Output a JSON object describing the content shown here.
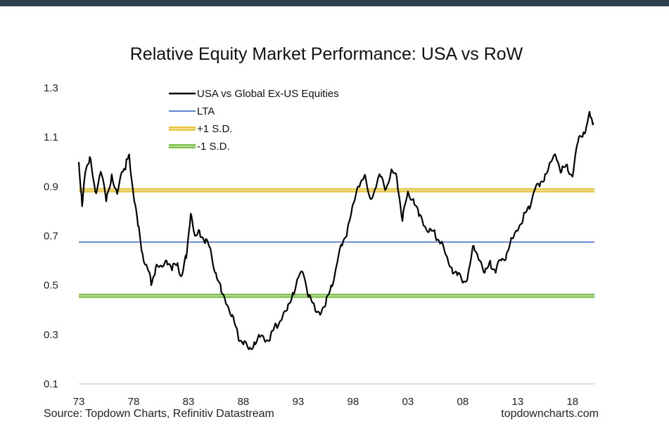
{
  "chart_data": {
    "type": "line",
    "title": "Relative Equity Market Performance: USA vs RoW",
    "xlabel": "",
    "ylabel": "",
    "xlim": [
      1973,
      2020
    ],
    "ylim": [
      0.1,
      1.3
    ],
    "x_ticks": [
      "73",
      "78",
      "83",
      "88",
      "93",
      "98",
      "03",
      "08",
      "13",
      "18"
    ],
    "y_ticks": [
      "1.3",
      "1.1",
      "0.9",
      "0.7",
      "0.5",
      "0.3",
      "0.1"
    ],
    "grid": false,
    "legend_position": "top-left",
    "series": [
      {
        "name": "USA vs Global Ex-US Equities",
        "color": "#000000",
        "x": [
          1973.0,
          1973.3,
          1973.6,
          1974.0,
          1974.5,
          1975.0,
          1975.5,
          1976.0,
          1976.5,
          1977.0,
          1977.3,
          1977.6,
          1978.0,
          1978.4,
          1978.8,
          1979.2,
          1979.6,
          1980.0,
          1980.5,
          1981.0,
          1981.5,
          1982.0,
          1982.4,
          1982.8,
          1983.2,
          1983.6,
          1984.0,
          1984.5,
          1985.0,
          1985.5,
          1986.0,
          1986.5,
          1987.0,
          1987.5,
          1988.0,
          1988.5,
          1989.0,
          1989.5,
          1990.0,
          1990.5,
          1991.0,
          1991.5,
          1992.0,
          1992.5,
          1993.0,
          1993.5,
          1994.0,
          1994.5,
          1995.0,
          1995.5,
          1996.0,
          1996.5,
          1997.0,
          1997.5,
          1998.0,
          1998.5,
          1999.0,
          1999.5,
          2000.0,
          2000.5,
          2001.0,
          2001.5,
          2002.0,
          2002.5,
          2003.0,
          2003.5,
          2004.0,
          2004.5,
          2005.0,
          2005.5,
          2006.0,
          2006.5,
          2007.0,
          2007.5,
          2008.0,
          2008.5,
          2009.0,
          2009.5,
          2010.0,
          2010.5,
          2011.0,
          2011.5,
          2012.0,
          2012.5,
          2013.0,
          2013.5,
          2014.0,
          2014.5,
          2015.0,
          2015.5,
          2016.0,
          2016.5,
          2017.0,
          2017.5,
          2018.0,
          2018.5,
          2019.0,
          2019.3,
          2019.6,
          2019.9
        ],
        "y": [
          1.0,
          0.82,
          0.96,
          1.02,
          0.88,
          0.96,
          0.84,
          0.95,
          0.87,
          0.96,
          0.99,
          1.03,
          0.86,
          0.74,
          0.63,
          0.58,
          0.5,
          0.57,
          0.58,
          0.6,
          0.56,
          0.59,
          0.54,
          0.61,
          0.79,
          0.7,
          0.72,
          0.67,
          0.65,
          0.55,
          0.47,
          0.42,
          0.38,
          0.3,
          0.26,
          0.24,
          0.27,
          0.29,
          0.27,
          0.3,
          0.34,
          0.36,
          0.4,
          0.47,
          0.53,
          0.54,
          0.46,
          0.41,
          0.38,
          0.42,
          0.5,
          0.58,
          0.66,
          0.73,
          0.83,
          0.9,
          0.94,
          0.86,
          0.89,
          0.94,
          0.89,
          0.97,
          0.93,
          0.76,
          0.88,
          0.85,
          0.78,
          0.74,
          0.73,
          0.7,
          0.67,
          0.62,
          0.57,
          0.54,
          0.51,
          0.55,
          0.66,
          0.6,
          0.55,
          0.6,
          0.55,
          0.6,
          0.63,
          0.69,
          0.72,
          0.77,
          0.82,
          0.88,
          0.9,
          0.95,
          1.0,
          1.02,
          0.96,
          0.99,
          0.94,
          1.08,
          1.12,
          1.15,
          1.19,
          1.16
        ]
      },
      {
        "name": "LTA",
        "color": "#4472c4",
        "y_value": 0.675
      },
      {
        "name": "+1 S.D.",
        "color": "#e5c33b",
        "y_value": 0.885
      },
      {
        "name": "-1 S.D.",
        "color": "#7dbf4a",
        "y_value": 0.457
      }
    ]
  },
  "footer": {
    "source": "Source: Topdown Charts, Refinitiv Datastream",
    "site": "topdowncharts.com"
  }
}
